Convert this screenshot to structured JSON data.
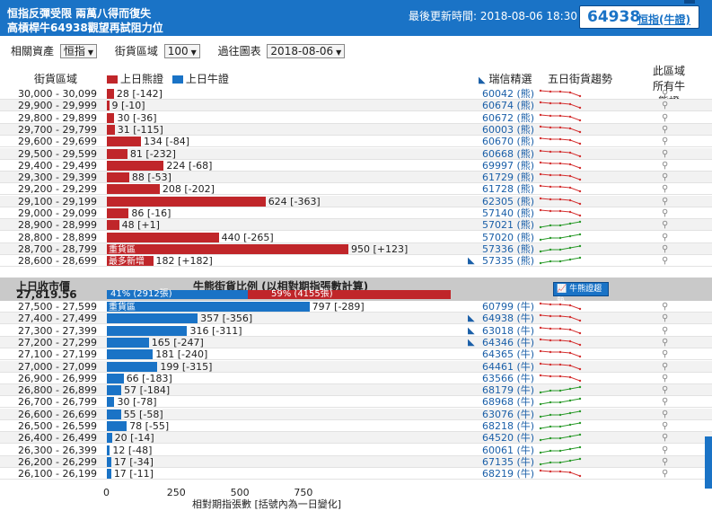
{
  "header": {
    "title_line1": "恒指反彈受限 兩萬八得而復失",
    "title_line2": "高槓桿牛64938觀望再試阻力位",
    "updated": "最後更新時間: 2018-08-06 18:30",
    "code": "64938",
    "underlying_link": "恒指(牛證)"
  },
  "controls": {
    "asset_label": "相關資產",
    "asset_value": "恒指",
    "zone_label": "街貨區域",
    "zone_value": "100",
    "chart_label": "過往圖表",
    "chart_value": "2018-08-06"
  },
  "columns": {
    "range": "街貨區域",
    "bear_legend": "上日熊證",
    "bull_legend": "上日牛證",
    "pick": "瑞信精選",
    "trend": "五日街貨趨勢",
    "all_line1": "此區域",
    "all_line2": "所有牛熊證"
  },
  "colors": {
    "bear": "#c0262a",
    "bull": "#1a73c6",
    "trend_up": "#2a9a2a",
    "trend_down": "#d43030"
  },
  "bear_rows": [
    {
      "range": "30,000 - 30,099",
      "value": 28,
      "change": "-142",
      "code": "60042 (熊)",
      "trend": "down",
      "pick": false
    },
    {
      "range": "29,900 - 29,999",
      "value": 9,
      "change": "-10",
      "code": "60674 (熊)",
      "trend": "down",
      "pick": false
    },
    {
      "range": "29,800 - 29,899",
      "value": 30,
      "change": "-36",
      "code": "60672 (熊)",
      "trend": "down",
      "pick": false
    },
    {
      "range": "29,700 - 29,799",
      "value": 31,
      "change": "-115",
      "code": "60003 (熊)",
      "trend": "down",
      "pick": false
    },
    {
      "range": "29,600 - 29,699",
      "value": 134,
      "change": "-84",
      "code": "60670 (熊)",
      "trend": "down",
      "pick": false
    },
    {
      "range": "29,500 - 29,599",
      "value": 81,
      "change": "-232",
      "code": "60668 (熊)",
      "trend": "down",
      "pick": false
    },
    {
      "range": "29,400 - 29,499",
      "value": 224,
      "change": "-68",
      "code": "69997 (熊)",
      "trend": "down",
      "pick": false
    },
    {
      "range": "29,300 - 29,399",
      "value": 88,
      "change": "-53",
      "code": "61729 (熊)",
      "trend": "down",
      "pick": false
    },
    {
      "range": "29,200 - 29,299",
      "value": 208,
      "change": "-202",
      "code": "61728 (熊)",
      "trend": "down",
      "pick": false
    },
    {
      "range": "29,100 - 29,199",
      "value": 624,
      "change": "-363",
      "code": "62305 (熊)",
      "trend": "down",
      "pick": false
    },
    {
      "range": "29,000 - 29,099",
      "value": 86,
      "change": "-16",
      "code": "57140 (熊)",
      "trend": "down",
      "pick": false
    },
    {
      "range": "28,900 - 28,999",
      "value": 48,
      "change": "+1",
      "code": "57021 (熊)",
      "trend": "up",
      "pick": false
    },
    {
      "range": "28,800 - 28,899",
      "value": 440,
      "change": "-265",
      "code": "57020 (熊)",
      "trend": "up",
      "pick": false
    },
    {
      "range": "28,700 - 28,799",
      "value": 950,
      "change": "+123",
      "code": "57336 (熊)",
      "trend": "up",
      "pick": false,
      "zone": "重貨區"
    },
    {
      "range": "28,600 - 28,699",
      "value": 182,
      "change": "+182",
      "code": "57335 (熊)",
      "trend": "up",
      "pick": true,
      "zone": "最多新增"
    }
  ],
  "middle": {
    "prev_close_label": "上日收市價",
    "prev_close_value": "27,819.56",
    "ratio_title": "牛熊街貨比例 (以相對期指張數計算)",
    "bull_pct": 41,
    "bull_text": "41% (2912張)",
    "bear_text": "59% (4155張)",
    "trend_button": "牛熊證趨勢"
  },
  "bull_rows": [
    {
      "range": "27,500 - 27,599",
      "value": 797,
      "change": "-289",
      "code": "60799 (牛)",
      "trend": "down",
      "pick": false,
      "zone": "重貨區"
    },
    {
      "range": "27,400 - 27,499",
      "value": 357,
      "change": "-356",
      "code": "64938 (牛)",
      "trend": "down",
      "pick": true
    },
    {
      "range": "27,300 - 27,399",
      "value": 316,
      "change": "-311",
      "code": "63018 (牛)",
      "trend": "down",
      "pick": true
    },
    {
      "range": "27,200 - 27,299",
      "value": 165,
      "change": "-247",
      "code": "64346 (牛)",
      "trend": "down",
      "pick": true
    },
    {
      "range": "27,100 - 27,199",
      "value": 181,
      "change": "-240",
      "code": "64365 (牛)",
      "trend": "down",
      "pick": false
    },
    {
      "range": "27,000 - 27,099",
      "value": 199,
      "change": "-315",
      "code": "64461 (牛)",
      "trend": "down",
      "pick": false
    },
    {
      "range": "26,900 - 26,999",
      "value": 66,
      "change": "-183",
      "code": "63566 (牛)",
      "trend": "down",
      "pick": false
    },
    {
      "range": "26,800 - 26,899",
      "value": 57,
      "change": "-184",
      "code": "68179 (牛)",
      "trend": "up",
      "pick": false
    },
    {
      "range": "26,700 - 26,799",
      "value": 30,
      "change": "-78",
      "code": "68968 (牛)",
      "trend": "up",
      "pick": false
    },
    {
      "range": "26,600 - 26,699",
      "value": 55,
      "change": "-58",
      "code": "63076 (牛)",
      "trend": "up",
      "pick": false
    },
    {
      "range": "26,500 - 26,599",
      "value": 78,
      "change": "-55",
      "code": "68218 (牛)",
      "trend": "up",
      "pick": false
    },
    {
      "range": "26,400 - 26,499",
      "value": 20,
      "change": "-14",
      "code": "64520 (牛)",
      "trend": "up",
      "pick": false
    },
    {
      "range": "26,300 - 26,399",
      "value": 12,
      "change": "-48",
      "code": "60061 (牛)",
      "trend": "up",
      "pick": false
    },
    {
      "range": "26,200 - 26,299",
      "value": 17,
      "change": "-34",
      "code": "67135 (牛)",
      "trend": "up",
      "pick": false
    },
    {
      "range": "26,100 - 26,199",
      "value": 17,
      "change": "-11",
      "code": "68219 (牛)",
      "trend": "down",
      "pick": false
    }
  ],
  "axis": {
    "ticks": [
      "0",
      "250",
      "500",
      "750"
    ],
    "tick_values": [
      0,
      250,
      500,
      750
    ],
    "label": "相對期指張數 [括號內為一日變化]"
  }
}
